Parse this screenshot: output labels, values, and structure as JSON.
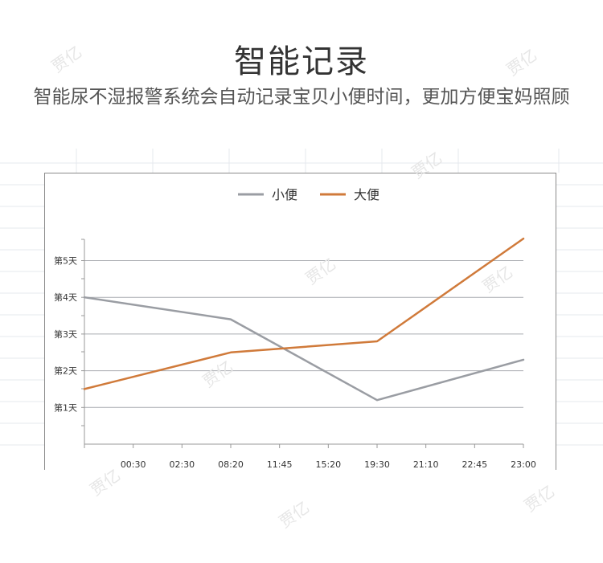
{
  "header": {
    "title": "智能记录",
    "subtitle": "智能尿不湿报警系统会自动记录宝贝小便时间，更加方便宝妈照顾"
  },
  "watermark": "贾亿",
  "chart_data": {
    "type": "line",
    "categories": [
      "",
      "00:30",
      "02:30",
      "08:20",
      "11:45",
      "15:20",
      "19:30",
      "21:10",
      "22:45",
      "23:00"
    ],
    "y_tick_labels": [
      "第1天",
      "第2天",
      "第3天",
      "第4天",
      "第5天"
    ],
    "ylim": [
      0,
      5.6
    ],
    "grid": true,
    "legend": "top-center",
    "series": [
      {
        "name": "小便",
        "color": "#9a9da3",
        "points": [
          {
            "x": 0,
            "y": 4.0
          },
          {
            "x": 3,
            "y": 3.4
          },
          {
            "x": 6,
            "y": 1.2
          },
          {
            "x": 9,
            "y": 2.3
          }
        ]
      },
      {
        "name": "大便",
        "color": "#d07a3a",
        "points": [
          {
            "x": 0,
            "y": 1.5
          },
          {
            "x": 3,
            "y": 2.5
          },
          {
            "x": 6,
            "y": 2.8
          },
          {
            "x": 9,
            "y": 5.6
          }
        ]
      }
    ]
  }
}
